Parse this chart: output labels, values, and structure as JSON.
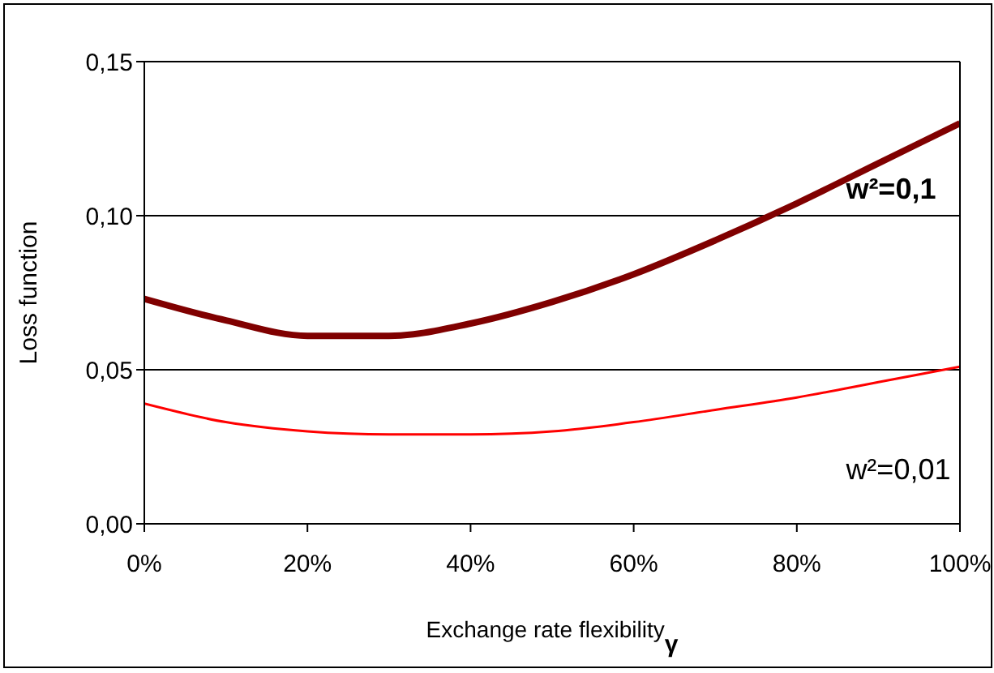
{
  "chart_data": {
    "type": "line",
    "xlabel": "Exchange rate flexibility$_{γ}$",
    "ylabel": "Loss function",
    "x": [
      0,
      10,
      20,
      30,
      40,
      50,
      60,
      70,
      80,
      90,
      100
    ],
    "series": [
      {
        "name": "w²=0,1",
        "color": "#800000",
        "values": [
          0.073,
          0.066,
          0.061,
          0.061,
          0.065,
          0.072,
          0.081,
          0.092,
          0.104,
          0.117,
          0.13
        ]
      },
      {
        "name": "w²=0,01",
        "color": "#ff0000",
        "values": [
          0.039,
          0.033,
          0.03,
          0.029,
          0.029,
          0.03,
          0.033,
          0.037,
          0.041,
          0.046,
          0.051
        ]
      }
    ],
    "xlim": [
      0,
      100
    ],
    "xticks": [
      {
        "value": 0,
        "label": "0%"
      },
      {
        "value": 20,
        "label": "20%"
      },
      {
        "value": 40,
        "label": "40%"
      },
      {
        "value": 60,
        "label": "60%"
      },
      {
        "value": 80,
        "label": "80%"
      },
      {
        "value": 100,
        "label": "100%"
      }
    ],
    "ylim": [
      0,
      0.15
    ],
    "yticks": [
      {
        "value": 0,
        "label": "0,00"
      },
      {
        "value": 0.05,
        "label": "0,05"
      },
      {
        "value": 0.1,
        "label": "0,10"
      },
      {
        "value": 0.15,
        "label": "0,15"
      }
    ],
    "grid": "y",
    "legend": false,
    "marker": "none",
    "line_style": "solid"
  }
}
